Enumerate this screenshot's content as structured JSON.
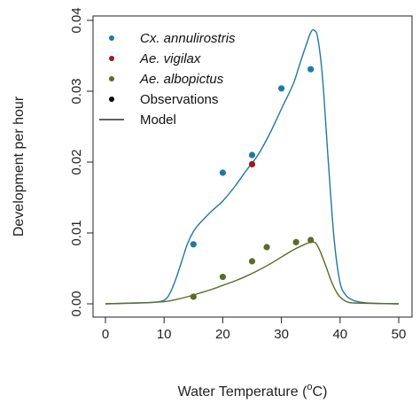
{
  "chart_data": {
    "type": "line",
    "xlabel": "Water Temperature (",
    "xlabel_sup": "o",
    "xlabel_suffix": "C)",
    "ylabel": "Development per hour",
    "xlim": [
      0,
      50
    ],
    "ylim": [
      0,
      0.04
    ],
    "x_ticks": [
      "0",
      "10",
      "20",
      "30",
      "40",
      "50"
    ],
    "y_ticks": [
      "0.00",
      "0.01",
      "0.02",
      "0.03",
      "0.04"
    ],
    "grid": false,
    "legend_position": "top-left",
    "legend": [
      {
        "label": "Cx. annulirostris",
        "kind": "point",
        "color": "#1f78a4",
        "italic": true
      },
      {
        "label": "Ae. vigilax",
        "kind": "point",
        "color": "#9b1b1b",
        "italic": true
      },
      {
        "label": "Ae. albopictus",
        "kind": "point",
        "color": "#5a6b2a",
        "italic": true
      },
      {
        "label": "Observations",
        "kind": "point",
        "color": "#000000",
        "italic": false
      },
      {
        "label": "Model",
        "kind": "line",
        "color": "#000000",
        "italic": false
      }
    ],
    "series": [
      {
        "name": "Cx. annulirostris",
        "kind": "points",
        "color": "#1f78a4",
        "points": [
          [
            15,
            0.0084
          ],
          [
            20,
            0.0185
          ],
          [
            25,
            0.021
          ],
          [
            30,
            0.0304
          ],
          [
            35,
            0.0331
          ]
        ]
      },
      {
        "name": "Ae. vigilax",
        "kind": "points",
        "color": "#9b1b1b",
        "points": [
          [
            25,
            0.0197
          ]
        ]
      },
      {
        "name": "Ae. albopictus",
        "kind": "points",
        "color": "#5a6b2a",
        "points": [
          [
            15,
            0.001
          ],
          [
            20,
            0.0038
          ],
          [
            25,
            0.006
          ],
          [
            27.5,
            0.008
          ],
          [
            32.5,
            0.0087
          ],
          [
            35,
            0.009
          ]
        ]
      },
      {
        "name": "Cx. annulirostris",
        "kind": "model-line",
        "color": "#1f78a4",
        "points": [
          [
            0,
            0
          ],
          [
            4,
            0.0001
          ],
          [
            8,
            0.0002
          ],
          [
            10,
            0.0005
          ],
          [
            11,
            0.0015
          ],
          [
            12,
            0.0035
          ],
          [
            13,
            0.006
          ],
          [
            14,
            0.0085
          ],
          [
            15,
            0.0102
          ],
          [
            16,
            0.0113
          ],
          [
            18,
            0.013
          ],
          [
            20,
            0.0145
          ],
          [
            22,
            0.0165
          ],
          [
            24,
            0.0188
          ],
          [
            26,
            0.021
          ],
          [
            28,
            0.024
          ],
          [
            30,
            0.0275
          ],
          [
            32,
            0.031
          ],
          [
            33,
            0.0335
          ],
          [
            34,
            0.036
          ],
          [
            35,
            0.0383
          ],
          [
            35.6,
            0.0386
          ],
          [
            36.2,
            0.0375
          ],
          [
            37,
            0.032
          ],
          [
            38,
            0.02
          ],
          [
            39,
            0.009
          ],
          [
            40,
            0.003
          ],
          [
            41,
            0.0012
          ],
          [
            42,
            0.0006
          ],
          [
            43,
            0.0003
          ],
          [
            45,
            0.0001
          ],
          [
            50,
            0
          ]
        ]
      },
      {
        "name": "Ae. albopictus",
        "kind": "model-line",
        "color": "#5a6b2a",
        "points": [
          [
            0,
            0
          ],
          [
            5,
            0.0001
          ],
          [
            10,
            0.0003
          ],
          [
            12,
            0.0006
          ],
          [
            14,
            0.001
          ],
          [
            16,
            0.0015
          ],
          [
            18,
            0.002
          ],
          [
            20,
            0.0026
          ],
          [
            22,
            0.0032
          ],
          [
            24,
            0.0039
          ],
          [
            26,
            0.0047
          ],
          [
            28,
            0.0056
          ],
          [
            30,
            0.0066
          ],
          [
            32,
            0.0076
          ],
          [
            34,
            0.0084
          ],
          [
            35,
            0.0087
          ],
          [
            35.8,
            0.0086
          ],
          [
            36.5,
            0.0076
          ],
          [
            37.5,
            0.0055
          ],
          [
            38.5,
            0.0032
          ],
          [
            39.5,
            0.0015
          ],
          [
            40.5,
            0.0006
          ],
          [
            41.5,
            0.0002
          ],
          [
            43,
            0.0001
          ],
          [
            50,
            0
          ]
        ]
      }
    ]
  }
}
